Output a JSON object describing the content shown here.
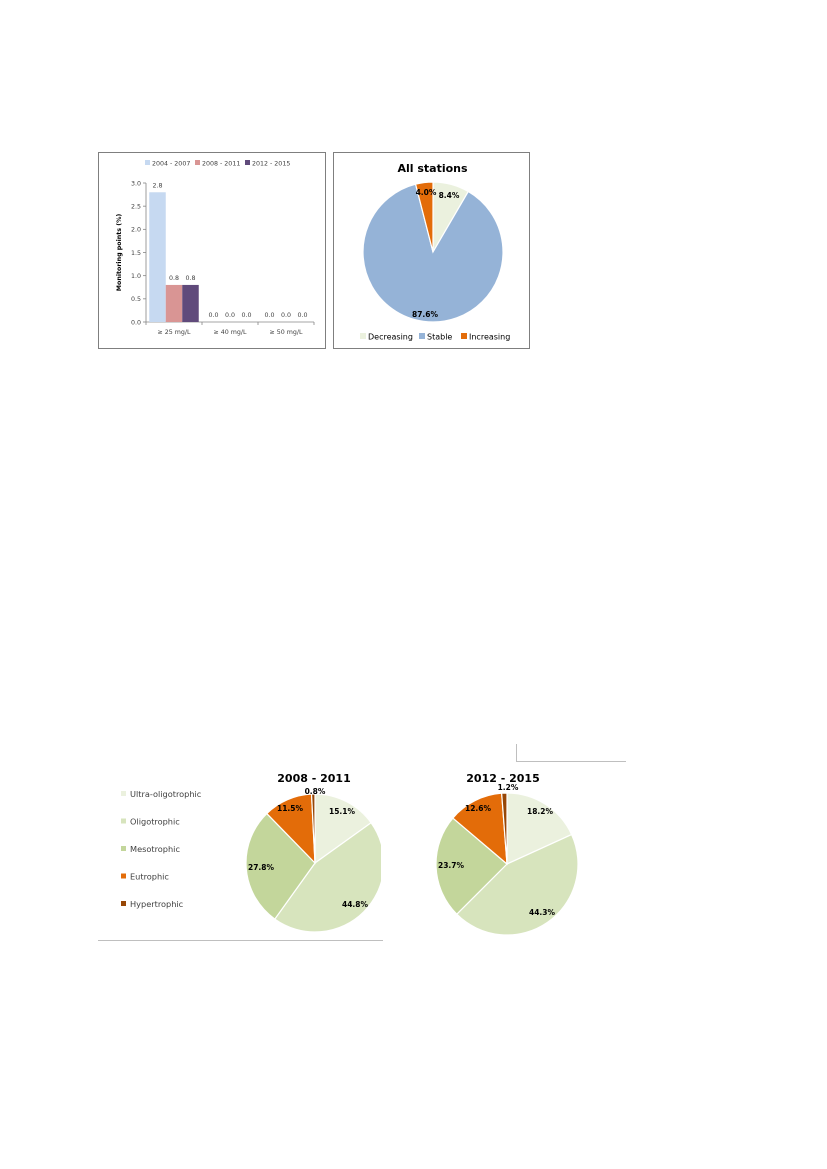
{
  "colors": {
    "series_2004_2007": "#c6d9f1",
    "series_2008_2011": "#d99594",
    "series_2012_2015": "#604a7b",
    "decreasing": "#ebf1de",
    "stable": "#95b3d7",
    "increasing": "#e36c09",
    "ultra_oligotrophic": "#ebf1de",
    "oligotrophic": "#d7e4bd",
    "mesotrophic": "#c3d69b",
    "eutrophic": "#e36c09",
    "hypertrophic": "#974706"
  },
  "chart_data": [
    {
      "type": "bar",
      "title": "",
      "xlabel": "",
      "ylabel": "Monitoring points (%)",
      "categories": [
        "≥ 25 mg/L",
        "≥ 40 mg/L",
        "≥ 50 mg/L"
      ],
      "yticks": [
        "0.0",
        "0.5",
        "1.0",
        "1.5",
        "2.0",
        "2.5",
        "3.0"
      ],
      "ylim": [
        0,
        3.0
      ],
      "grid": false,
      "legend_position": "top",
      "series": [
        {
          "name": "2004 - 2007",
          "values": [
            2.8,
            0.0,
            0.0
          ],
          "labels": [
            "2.8",
            "0.0",
            "0.0"
          ]
        },
        {
          "name": "2008 - 2011",
          "values": [
            0.8,
            0.0,
            0.0
          ],
          "labels": [
            "0.8",
            "0.0",
            "0.0"
          ]
        },
        {
          "name": "2012 - 2015",
          "values": [
            0.8,
            0.0,
            0.0
          ],
          "labels": [
            "0.8",
            "0.0",
            "0.0"
          ]
        }
      ]
    },
    {
      "type": "pie",
      "title": "All stations",
      "legend_position": "bottom",
      "categories": [
        "Decreasing",
        "Stable",
        "Increasing"
      ],
      "values": [
        8.4,
        87.6,
        4.0
      ],
      "labels": [
        "8.4%",
        "87.6%",
        "4.0%"
      ]
    },
    {
      "type": "pie",
      "title": "2008 - 2011",
      "legend_position": "left",
      "categories": [
        "Ultra-oligotrophic",
        "Oligotrophic",
        "Mesotrophic",
        "Eutrophic",
        "Hypertrophic"
      ],
      "values": [
        15.1,
        44.8,
        27.8,
        11.5,
        0.8
      ],
      "labels": [
        "15.1%",
        "44.8%",
        "27.8%",
        "11.5%",
        "0.8%"
      ]
    },
    {
      "type": "pie",
      "title": "2012 - 2015",
      "categories": [
        "Ultra-oligotrophic",
        "Oligotrophic",
        "Mesotrophic",
        "Eutrophic",
        "Hypertrophic"
      ],
      "values": [
        18.2,
        44.3,
        23.7,
        12.6,
        1.2
      ],
      "labels": [
        "18.2%",
        "44.3%",
        "23.7%",
        "12.6%",
        "1.2%"
      ]
    }
  ]
}
